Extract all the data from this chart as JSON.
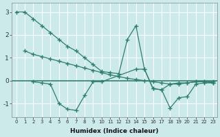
{
  "xlabel": "Humidex (Indice chaleur)",
  "bg_color": "#cceaea",
  "grid_color": "#ffffff",
  "line_color": "#2e7d6e",
  "xlim": [
    -0.5,
    23.5
  ],
  "ylim": [
    -1.6,
    3.4
  ],
  "yticks": [
    -1,
    0,
    1,
    2,
    3
  ],
  "xticks": [
    0,
    1,
    2,
    3,
    4,
    5,
    6,
    7,
    8,
    9,
    10,
    11,
    12,
    13,
    14,
    15,
    16,
    17,
    18,
    19,
    20,
    21,
    22,
    23
  ],
  "series": [
    {
      "x": [
        0,
        1,
        2,
        3,
        4,
        5,
        6,
        7,
        8,
        9,
        10,
        11,
        12,
        13,
        14,
        15,
        16,
        17,
        18,
        19,
        20,
        21,
        22,
        23
      ],
      "y": [
        3.0,
        3.0,
        2.7,
        2.4,
        2.1,
        1.8,
        1.5,
        1.3,
        1.0,
        0.7,
        0.4,
        0.35,
        0.3,
        1.8,
        2.4,
        0.5,
        -0.35,
        -0.4,
        -0.15,
        -0.1,
        -0.1,
        -0.05,
        -0.05,
        -0.1
      ]
    },
    {
      "x": [
        1,
        2,
        3,
        4,
        5,
        6,
        7,
        8,
        9,
        10,
        11,
        12,
        13,
        14,
        15,
        16,
        17,
        18,
        19,
        20,
        21,
        22,
        23
      ],
      "y": [
        1.3,
        1.15,
        1.05,
        0.95,
        0.85,
        0.75,
        0.65,
        0.55,
        0.45,
        0.35,
        0.25,
        0.18,
        0.1,
        0.05,
        0.0,
        -0.05,
        -0.1,
        -0.15,
        -0.15,
        -0.1,
        -0.05,
        -0.05,
        -0.05
      ]
    },
    {
      "x": [
        2,
        3,
        4,
        5,
        6,
        7,
        8,
        9,
        10,
        14,
        15,
        16,
        17,
        18,
        19,
        20,
        21,
        22,
        23
      ],
      "y": [
        -0.05,
        -0.1,
        -0.15,
        -1.0,
        -1.25,
        -1.3,
        -0.65,
        -0.05,
        -0.05,
        0.5,
        0.5,
        -0.35,
        -0.4,
        -1.2,
        -0.75,
        -0.7,
        -0.15,
        -0.1,
        -0.1
      ]
    }
  ],
  "hline_color": "#2e7d6e"
}
